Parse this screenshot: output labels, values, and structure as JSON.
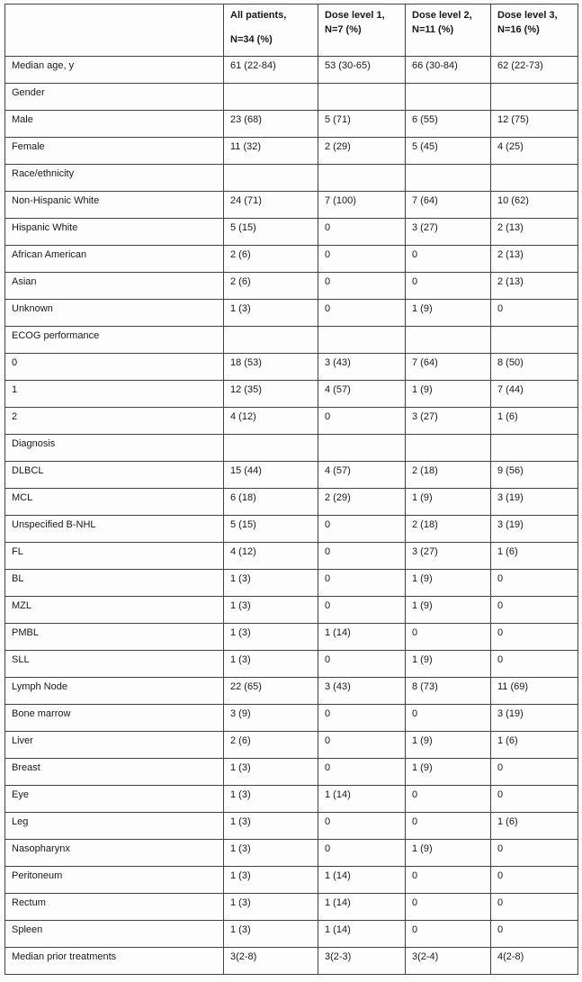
{
  "table": {
    "header": [
      {
        "line1": "",
        "line2": ""
      },
      {
        "line1": "All patients,",
        "line2": "N=34 (%)"
      },
      {
        "line1": "Dose level 1,",
        "line2": "N=7 (%)"
      },
      {
        "line1": "Dose level 2,",
        "line2": "N=11 (%)"
      },
      {
        "line1": "Dose level 3,",
        "line2": "N=16 (%)"
      }
    ],
    "rows": [
      {
        "label": "Median age, y",
        "values": [
          "61 (22-84)",
          "53 (30-65)",
          "66 (30-84)",
          "62 (22-73)"
        ]
      },
      {
        "label": "Gender",
        "values": [
          "",
          "",
          "",
          ""
        ]
      },
      {
        "label": "Male",
        "values": [
          "23 (68)",
          "5 (71)",
          "6 (55)",
          "12 (75)"
        ]
      },
      {
        "label": "Female",
        "values": [
          "11 (32)",
          "2 (29)",
          "5 (45)",
          "4 (25)"
        ]
      },
      {
        "label": "Race/ethnicity",
        "values": [
          "",
          "",
          "",
          ""
        ]
      },
      {
        "label": "Non-Hispanic White",
        "values": [
          "24 (71)",
          "7 (100)",
          "7 (64)",
          "10 (62)"
        ]
      },
      {
        "label": "Hispanic White",
        "values": [
          "5 (15)",
          "0",
          "3 (27)",
          "2 (13)"
        ]
      },
      {
        "label": "African American",
        "values": [
          "2 (6)",
          "0",
          "0",
          "2 (13)"
        ]
      },
      {
        "label": "Asian",
        "values": [
          "2 (6)",
          "0",
          "0",
          "2 (13)"
        ]
      },
      {
        "label": "Unknown",
        "values": [
          "1 (3)",
          "0",
          "1 (9)",
          "0"
        ]
      },
      {
        "label": "ECOG performance",
        "values": [
          "",
          "",
          "",
          ""
        ]
      },
      {
        "label": "0",
        "values": [
          "18 (53)",
          "3 (43)",
          "7 (64)",
          "8 (50)"
        ]
      },
      {
        "label": "1",
        "values": [
          "12 (35)",
          "4 (57)",
          "1 (9)",
          "7 (44)"
        ]
      },
      {
        "label": "2",
        "values": [
          "4 (12)",
          "0",
          "3 (27)",
          "1 (6)"
        ]
      },
      {
        "label": "Diagnosis",
        "values": [
          "",
          "",
          "",
          ""
        ]
      },
      {
        "label": "DLBCL",
        "values": [
          "15 (44)",
          "4 (57)",
          "2 (18)",
          "9 (56)"
        ]
      },
      {
        "label": "MCL",
        "values": [
          "6 (18)",
          "2 (29)",
          "1 (9)",
          "3 (19)"
        ]
      },
      {
        "label": "Unspecified B-NHL",
        "values": [
          "5 (15)",
          "0",
          "2 (18)",
          "3 (19)"
        ]
      },
      {
        "label": "FL",
        "values": [
          "4 (12)",
          "0",
          "3 (27)",
          "1 (6)"
        ]
      },
      {
        "label": "BL",
        "values": [
          "1 (3)",
          "0",
          "1 (9)",
          "0"
        ]
      },
      {
        "label": "MZL",
        "values": [
          "1 (3)",
          "0",
          "1 (9)",
          "0"
        ]
      },
      {
        "label": "PMBL",
        "values": [
          "1 (3)",
          "1 (14)",
          "0",
          "0"
        ]
      },
      {
        "label": "SLL",
        "values": [
          "1 (3)",
          "0",
          "1 (9)",
          "0"
        ]
      },
      {
        "label": "Lymph Node",
        "values": [
          "22 (65)",
          "3 (43)",
          "8 (73)",
          "11 (69)"
        ]
      },
      {
        "label": "Bone marrow",
        "values": [
          "3 (9)",
          "0",
          "0",
          "3 (19)"
        ]
      },
      {
        "label": "Liver",
        "values": [
          "2 (6)",
          "0",
          "1 (9)",
          "1 (6)"
        ]
      },
      {
        "label": "Breast",
        "values": [
          "1 (3)",
          "0",
          "1 (9)",
          "0"
        ]
      },
      {
        "label": "Eye",
        "values": [
          "1 (3)",
          "1 (14)",
          "0",
          "0"
        ]
      },
      {
        "label": "Leg",
        "values": [
          "1 (3)",
          "0",
          "0",
          "1 (6)"
        ]
      },
      {
        "label": "Nasopharynx",
        "values": [
          "1 (3)",
          "0",
          "1 (9)",
          "0"
        ]
      },
      {
        "label": "Peritoneum",
        "values": [
          "1 (3)",
          "1 (14)",
          "0",
          "0"
        ]
      },
      {
        "label": "Rectum",
        "values": [
          "1 (3)",
          "1 (14)",
          "0",
          "0"
        ]
      },
      {
        "label": "Spleen",
        "values": [
          "1 (3)",
          "1 (14)",
          "0",
          "0"
        ]
      },
      {
        "label": "Median prior treatments",
        "values": [
          "3(2-8)",
          "3(2-3)",
          "3(2-4)",
          "4(2-8)"
        ]
      }
    ]
  }
}
